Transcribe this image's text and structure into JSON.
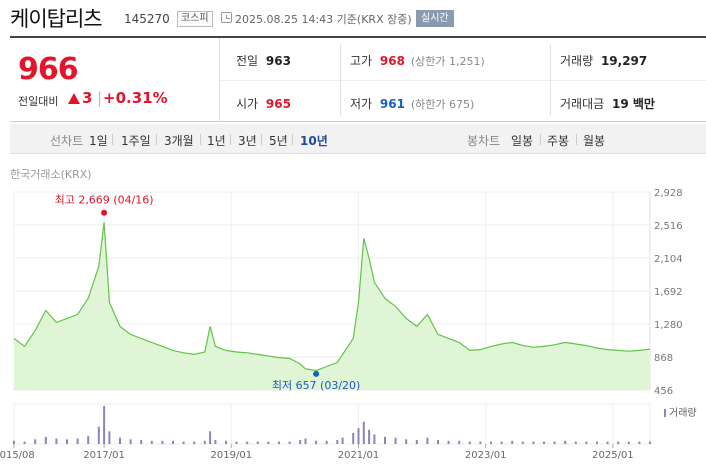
{
  "header": {
    "name": "케이탑리츠",
    "code": "145270",
    "market": "코스피",
    "timestamp": "2025.08.25 14:43  기준(KRX 장중)",
    "realtime": "실시간"
  },
  "quote": {
    "price": "966",
    "change_label": "전일대비",
    "change_value": "3",
    "change_pct": "+0.31%",
    "prev_label": "전일",
    "prev_value": "963",
    "high_label": "고가",
    "high_value": "968",
    "high_sub": "(상한가 1,251)",
    "volume_label": "거래량",
    "volume_value": "19,297",
    "open_label": "시가",
    "open_value": "965",
    "low_label": "저가",
    "low_value": "961",
    "low_sub": "(하한가 675)",
    "amount_label": "거래대금",
    "amount_value": "19 백만"
  },
  "colors": {
    "up": "#e0162b",
    "down": "#1a5cc8",
    "line": "#61c447",
    "fill": "#dff5d6",
    "volume": "#8d84b8"
  },
  "tabs": {
    "line_title": "선차트",
    "line": [
      "1일",
      "1주일",
      "3개월",
      "1년",
      "3년",
      "5년",
      "10년"
    ],
    "line_active": "10년",
    "candle_title": "봉차트",
    "candle": [
      "일봉",
      "주봉",
      "월봉"
    ]
  },
  "exchange_label": "한국거래소(KRX)",
  "chart_data": {
    "type": "area",
    "y_ticks": [
      "2,928",
      "2,516",
      "2,104",
      "1,692",
      "1,280",
      "868",
      "456"
    ],
    "ylim": [
      456,
      2928
    ],
    "x_ticks": [
      "2015/08",
      "2017/01",
      "2019/01",
      "2021/01",
      "2023/01",
      "2025/01"
    ],
    "x_tick_dates": [
      "2015-08",
      "2017-01",
      "2019-01",
      "2021-01",
      "2023-01",
      "2025-01"
    ],
    "x_range": [
      "2015-08",
      "2025-08"
    ],
    "max_label": "최고 2,669 (04/16)",
    "min_label": "최저 657 (03/20)",
    "volume_legend": "거래량",
    "grid": true,
    "series": [
      {
        "x": [
          "2015-08",
          "2015-10",
          "2015-12",
          "2016-02",
          "2016-04",
          "2016-06",
          "2016-08",
          "2016-10",
          "2016-12",
          "2017-01",
          "2017-02",
          "2017-04",
          "2017-06",
          "2017-08",
          "2017-10",
          "2017-12",
          "2018-02",
          "2018-04",
          "2018-06",
          "2018-08",
          "2018-09",
          "2018-10",
          "2018-12",
          "2019-02",
          "2019-04",
          "2019-06",
          "2019-08",
          "2019-10",
          "2019-12",
          "2020-02",
          "2020-03",
          "2020-05",
          "2020-07",
          "2020-09",
          "2020-10",
          "2020-12",
          "2021-01",
          "2021-02",
          "2021-03",
          "2021-04",
          "2021-06",
          "2021-08",
          "2021-10",
          "2021-12",
          "2022-02",
          "2022-04",
          "2022-06",
          "2022-08",
          "2022-10",
          "2022-12",
          "2023-02",
          "2023-04",
          "2023-06",
          "2023-08",
          "2023-10",
          "2023-12",
          "2024-02",
          "2024-04",
          "2024-06",
          "2024-08",
          "2024-10",
          "2024-12",
          "2025-02",
          "2025-04",
          "2025-06",
          "2025-08"
        ],
        "y": [
          1100,
          1000,
          1200,
          1450,
          1300,
          1350,
          1400,
          1600,
          2000,
          2550,
          1550,
          1250,
          1150,
          1100,
          1050,
          1000,
          950,
          920,
          900,
          930,
          1250,
          1000,
          950,
          930,
          920,
          900,
          880,
          860,
          850,
          780,
          720,
          700,
          750,
          800,
          900,
          1100,
          1550,
          2350,
          2100,
          1800,
          1600,
          1500,
          1350,
          1250,
          1400,
          1150,
          1100,
          1050,
          950,
          960,
          1000,
          1030,
          1050,
          1010,
          990,
          1000,
          1020,
          1050,
          1030,
          1010,
          980,
          960,
          950,
          940,
          950,
          966
        ]
      }
    ],
    "volume": [
      4,
      3,
      6,
      9,
      7,
      6,
      7,
      10,
      22,
      48,
      16,
      8,
      6,
      5,
      4,
      4,
      4,
      3,
      3,
      4,
      16,
      5,
      4,
      3,
      3,
      3,
      3,
      3,
      3,
      5,
      7,
      4,
      4,
      5,
      8,
      14,
      20,
      28,
      18,
      12,
      9,
      8,
      6,
      5,
      8,
      5,
      4,
      4,
      3,
      3,
      3,
      3,
      4,
      3,
      3,
      3,
      3,
      4,
      3,
      3,
      3,
      3,
      3,
      3,
      3,
      3
    ]
  }
}
